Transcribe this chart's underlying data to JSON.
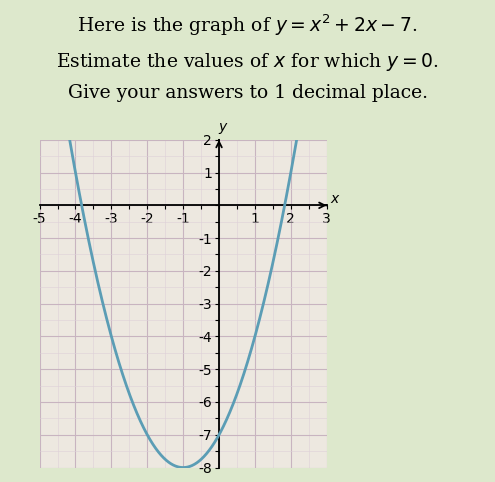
{
  "title_line1": "Here is the graph of $y = x^2 + 2x - 7$.",
  "title_line2": "Estimate the values of $x$ for which $y = 0$.",
  "title_line3": "Give your answers to 1 decimal place.",
  "xmin": -5,
  "xmax": 3,
  "ymin": -8,
  "ymax": 2,
  "curve_color": "#5b9db5",
  "grid_minor_color": "#ddd0d8",
  "grid_major_color": "#c8b4c0",
  "bg_color": "#dde8cc",
  "plot_bg_color": "#ede8e0",
  "title_fontsize": 13.5,
  "axis_label_x": "$x$",
  "axis_label_y": "$y$",
  "fig_width": 4.95,
  "fig_height": 4.82
}
